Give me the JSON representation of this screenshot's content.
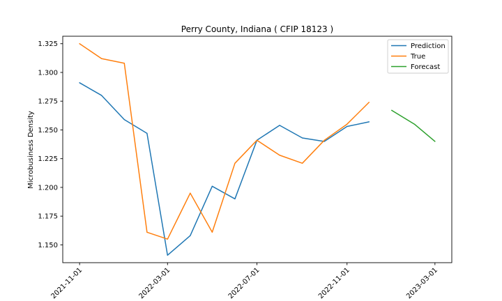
{
  "chart_data": {
    "type": "line",
    "title": "Perry County, Indiana ( CFIP 18123 )",
    "xlabel": "",
    "ylabel": "Microbusiness Density",
    "x_type": "date",
    "x_ticks": [
      "2021-11-01",
      "2022-03-01",
      "2022-07-01",
      "2022-11-01",
      "2023-03-01"
    ],
    "y_ticks": [
      "1.150",
      "1.175",
      "1.200",
      "1.225",
      "1.250",
      "1.275",
      "1.300",
      "1.325"
    ],
    "xlim": [
      "2021-10-09",
      "2023-03-24"
    ],
    "ylim": [
      1.1345,
      1.3315
    ],
    "grid": false,
    "legend_position": "top-right",
    "series": [
      {
        "name": "Prediction",
        "color": "#1f77b4",
        "x": [
          "2021-11-01",
          "2021-12-01",
          "2022-01-01",
          "2022-02-01",
          "2022-03-01",
          "2022-04-01",
          "2022-05-01",
          "2022-06-01",
          "2022-07-01",
          "2022-08-01",
          "2022-09-01",
          "2022-10-01",
          "2022-11-01",
          "2022-12-01"
        ],
        "y": [
          1.291,
          1.28,
          1.259,
          1.247,
          1.141,
          1.158,
          1.201,
          1.19,
          1.241,
          1.254,
          1.243,
          1.24,
          1.253,
          1.257
        ]
      },
      {
        "name": "True",
        "color": "#ff7f0e",
        "x": [
          "2021-11-01",
          "2021-12-01",
          "2022-01-01",
          "2022-02-01",
          "2022-03-01",
          "2022-04-01",
          "2022-05-01",
          "2022-06-01",
          "2022-07-01",
          "2022-08-01",
          "2022-09-01",
          "2022-10-01",
          "2022-11-01",
          "2022-12-01"
        ],
        "y": [
          1.325,
          1.312,
          1.308,
          1.161,
          1.155,
          1.195,
          1.161,
          1.221,
          1.241,
          1.228,
          1.221,
          1.241,
          1.255,
          1.274
        ]
      },
      {
        "name": "Forecast",
        "color": "#2ca02c",
        "x": [
          "2023-01-01",
          "2023-02-01",
          "2023-03-01"
        ],
        "y": [
          1.267,
          1.255,
          1.24
        ]
      }
    ]
  }
}
